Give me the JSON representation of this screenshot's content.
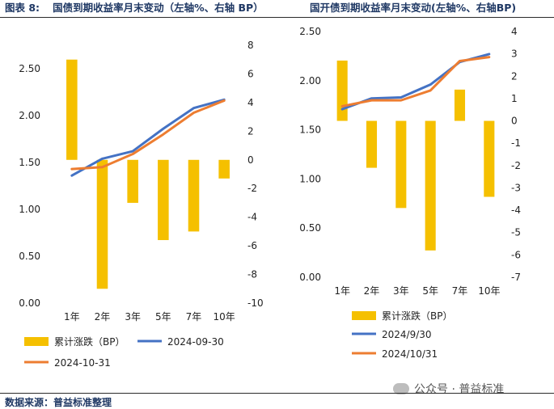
{
  "header": {
    "left_label": "图表 8:",
    "left_title": "国债到期收益率月末变动（左轴%、右轴 BP）",
    "right_title": "国开债到期收益率月末变动(左轴%、右轴BP)"
  },
  "footer": {
    "source": "数据来源：普益标准整理",
    "watermark": "公众号 · 普益标准"
  },
  "colors": {
    "bar": "#f5c000",
    "series1": "#4472c4",
    "series2": "#ed7d31"
  },
  "chart_data": [
    {
      "type": "bar+line",
      "title": "国债到期收益率月末变动（左轴%、右轴 BP）",
      "categories": [
        "1年",
        "2年",
        "3年",
        "5年",
        "7年",
        "10年"
      ],
      "left_axis": {
        "range": [
          0,
          2.75
        ],
        "ticks": [
          "0.00",
          "0.50",
          "1.00",
          "1.50",
          "2.00",
          "2.50"
        ],
        "tick_values": [
          0,
          0.5,
          1,
          1.5,
          2,
          2.5
        ]
      },
      "right_axis": {
        "range": [
          -10,
          8
        ],
        "ticks": [
          "-10",
          "-8",
          "-6",
          "-4",
          "-2",
          "0",
          "2",
          "4",
          "6",
          "8"
        ],
        "tick_values": [
          -10,
          -8,
          -6,
          -4,
          -2,
          0,
          2,
          4,
          6,
          8
        ]
      },
      "bars": {
        "name": "累计涨跌（BP）",
        "axis": "right",
        "values": [
          7,
          -9,
          -3,
          -5.6,
          -5,
          -1.3
        ]
      },
      "series": [
        {
          "name": "2024-09-30",
          "axis": "left",
          "values": [
            1.36,
            1.54,
            1.62,
            1.86,
            2.08,
            2.17
          ]
        },
        {
          "name": "2024-10-31",
          "axis": "left",
          "values": [
            1.43,
            1.45,
            1.59,
            1.8,
            2.03,
            2.16
          ]
        }
      ],
      "legend": [
        "累计涨跌（BP）",
        "2024-09-30",
        "2024-10-31"
      ]
    },
    {
      "type": "bar+line",
      "title": "国开债到期收益率月末变动(左轴%、右轴BP)",
      "categories": [
        "1年",
        "2年",
        "3年",
        "5年",
        "7年",
        "10年"
      ],
      "left_axis": {
        "range": [
          0,
          2.5
        ],
        "ticks": [
          "0.00",
          "0.50",
          "1.00",
          "1.50",
          "2.00",
          "2.50"
        ],
        "tick_values": [
          0,
          0.5,
          1,
          1.5,
          2,
          2.5
        ]
      },
      "right_axis": {
        "range": [
          -7,
          4
        ],
        "ticks": [
          "-7",
          "-6",
          "-5",
          "-4",
          "-3",
          "-2",
          "-1",
          "0",
          "1",
          "2",
          "3",
          "4"
        ],
        "tick_values": [
          -7,
          -6,
          -5,
          -4,
          -3,
          -2,
          -1,
          0,
          1,
          2,
          3,
          4
        ]
      },
      "bars": {
        "name": "累计涨跌（BP）",
        "axis": "right",
        "values": [
          2.7,
          -2.1,
          -3.9,
          -5.8,
          1.4,
          -3.4
        ]
      },
      "series": [
        {
          "name": "2024/9/30",
          "axis": "left",
          "values": [
            1.71,
            1.82,
            1.83,
            1.96,
            2.19,
            2.27
          ]
        },
        {
          "name": "2024/10/31",
          "axis": "left",
          "values": [
            1.74,
            1.8,
            1.8,
            1.9,
            2.2,
            2.24
          ]
        }
      ],
      "legend": [
        "累计涨跌（BP）",
        "2024/9/30",
        "2024/10/31"
      ]
    }
  ]
}
